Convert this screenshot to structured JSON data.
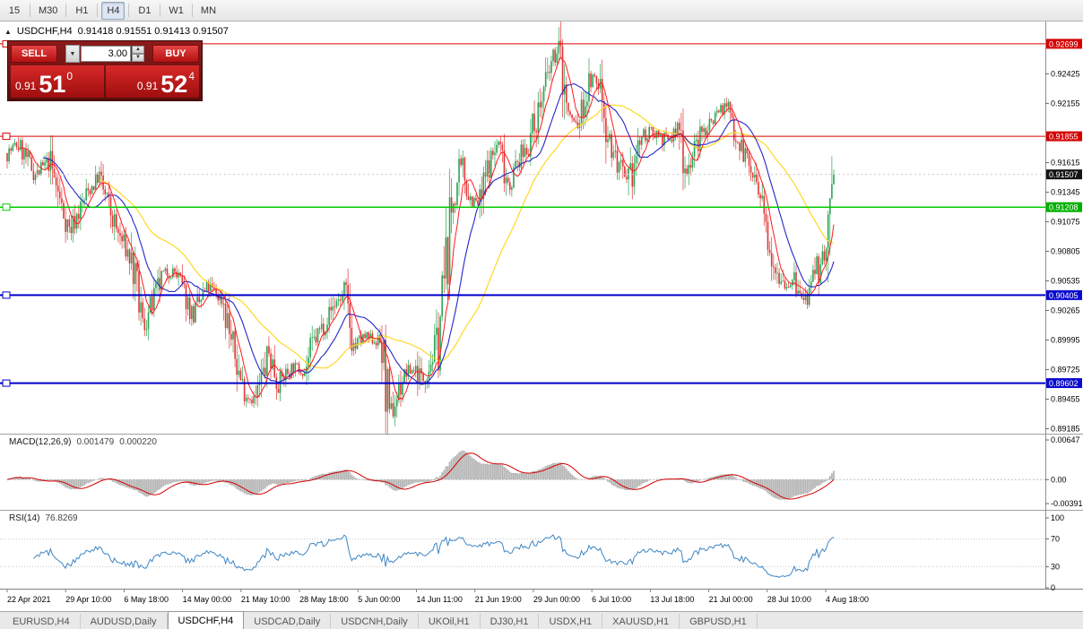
{
  "toolbar": {
    "timeframes": [
      "15",
      "M30",
      "H1",
      "H4",
      "D1",
      "W1",
      "MN"
    ],
    "active": "H4"
  },
  "chart_header": {
    "collapse_icon": "▲",
    "title": "USDCHF,H4",
    "ohlc": "0.91418 0.91551 0.91413 0.91507"
  },
  "trade_panel": {
    "sell_label": "SELL",
    "buy_label": "BUY",
    "volume": "3.00",
    "dropdown_icon": "▼",
    "spin_up_icon": "▲",
    "spin_down_icon": "▼",
    "sell_price_prefix": "0.91",
    "sell_price_big": "51",
    "sell_price_sup": "0",
    "buy_price_prefix": "0.91",
    "buy_price_big": "52",
    "buy_price_sup": "4"
  },
  "indicators": {
    "macd_label": "MACD(12,26,9)",
    "macd_value_main": "0.001479",
    "macd_value_signal": "0.000220",
    "rsi_label": "RSI(14)",
    "rsi_value": "76.8269"
  },
  "tabs": [
    {
      "label": "EURUSD,H4",
      "active": false
    },
    {
      "label": "AUDUSD,Daily",
      "active": false
    },
    {
      "label": "USDCHF,H4",
      "active": true
    },
    {
      "label": "USDCAD,Daily",
      "active": false
    },
    {
      "label": "USDCNH,Daily",
      "active": false
    },
    {
      "label": "UKOil,H1",
      "active": false
    },
    {
      "label": "DJ30,H1",
      "active": false
    },
    {
      "label": "USDX,H1",
      "active": false
    },
    {
      "label": "XAUUSD,H1",
      "active": false
    },
    {
      "label": "GBPUSD,H1",
      "active": false
    }
  ],
  "chart_data": {
    "type": "candlestick",
    "symbol": "USDCHF",
    "timeframe": "H4",
    "current_ohlc": {
      "open": 0.91418,
      "high": 0.91551,
      "low": 0.91413,
      "close": 0.91507
    },
    "current_price": 0.91507,
    "price_axis": {
      "top": 0.92829,
      "bottom": 0.89165,
      "ticks": [
        0.92425,
        0.92155,
        0.91615,
        0.91345,
        0.91075,
        0.90805,
        0.90535,
        0.90265,
        0.89995,
        0.89725,
        0.89455,
        0.89185
      ]
    },
    "special_prices": [
      {
        "label": "0.92699",
        "price": 0.92699,
        "bg": "#d40000"
      },
      {
        "label": "0.91855",
        "price": 0.91855,
        "bg": "#d40000"
      },
      {
        "label": "0.91507",
        "price": 0.91507,
        "bg": "#151515"
      },
      {
        "label": "0.91208",
        "price": 0.91208,
        "bg": "#00b000"
      },
      {
        "label": "0.90405",
        "price": 0.90405,
        "bg": "#0a0ace"
      },
      {
        "label": "0.89602",
        "price": 0.89602,
        "bg": "#0a0ace"
      }
    ],
    "horizontal_lines": [
      {
        "price": 0.92699,
        "color": "#dd0000",
        "w": 1
      },
      {
        "price": 0.91855,
        "color": "#dd0000",
        "w": 1
      },
      {
        "price": 0.91208,
        "color": "#00cc00",
        "w": 1.5
      },
      {
        "price": 0.90405,
        "color": "#0000cc",
        "w": 2
      },
      {
        "price": 0.89602,
        "color": "#0000cc",
        "w": 2
      }
    ],
    "time_labels": [
      "22 Apr 2021",
      "29 Apr 10:00",
      "6 May 18:00",
      "14 May 00:00",
      "21 May 10:00",
      "28 May 18:00",
      "5 Jun 00:00",
      "14 Jun 11:00",
      "21 Jun 19:00",
      "29 Jun 00:00",
      "6 Jul 10:00",
      "13 Jul 18:00",
      "21 Jul 00:00",
      "28 Jul 10:00",
      "4 Aug 18:00"
    ],
    "candle_count": 440,
    "price_path": [
      [
        0.0,
        0.917
      ],
      [
        0.013,
        0.9178
      ],
      [
        0.035,
        0.915
      ],
      [
        0.051,
        0.9163
      ],
      [
        0.067,
        0.9118
      ],
      [
        0.076,
        0.91
      ],
      [
        0.1,
        0.9138
      ],
      [
        0.111,
        0.9148
      ],
      [
        0.132,
        0.91
      ],
      [
        0.149,
        0.9075
      ],
      [
        0.165,
        0.9012
      ],
      [
        0.19,
        0.906
      ],
      [
        0.203,
        0.9062
      ],
      [
        0.225,
        0.9022
      ],
      [
        0.243,
        0.9048
      ],
      [
        0.262,
        0.9035
      ],
      [
        0.273,
        0.8992
      ],
      [
        0.287,
        0.895
      ],
      [
        0.301,
        0.8945
      ],
      [
        0.317,
        0.8988
      ],
      [
        0.328,
        0.896
      ],
      [
        0.344,
        0.8975
      ],
      [
        0.36,
        0.8972
      ],
      [
        0.371,
        0.8998
      ],
      [
        0.398,
        0.9035
      ],
      [
        0.408,
        0.904
      ],
      [
        0.42,
        0.8992
      ],
      [
        0.431,
        0.9002
      ],
      [
        0.452,
        0.8998
      ],
      [
        0.463,
        0.8928
      ],
      [
        0.48,
        0.8968
      ],
      [
        0.496,
        0.8975
      ],
      [
        0.501,
        0.8962
      ],
      [
        0.512,
        0.898
      ],
      [
        0.521,
        0.9
      ],
      [
        0.539,
        0.9125
      ],
      [
        0.55,
        0.9158
      ],
      [
        0.561,
        0.9128
      ],
      [
        0.572,
        0.9122
      ],
      [
        0.582,
        0.9158
      ],
      [
        0.594,
        0.918
      ],
      [
        0.607,
        0.9142
      ],
      [
        0.62,
        0.9165
      ],
      [
        0.631,
        0.918
      ],
      [
        0.647,
        0.922
      ],
      [
        0.661,
        0.9258
      ],
      [
        0.668,
        0.9262
      ],
      [
        0.679,
        0.9205
      ],
      [
        0.69,
        0.9195
      ],
      [
        0.707,
        0.9238
      ],
      [
        0.718,
        0.923
      ],
      [
        0.729,
        0.918
      ],
      [
        0.75,
        0.9135
      ],
      [
        0.767,
        0.9185
      ],
      [
        0.784,
        0.919
      ],
      [
        0.8,
        0.918
      ],
      [
        0.813,
        0.9195
      ],
      [
        0.822,
        0.9155
      ],
      [
        0.838,
        0.9185
      ],
      [
        0.86,
        0.921
      ],
      [
        0.871,
        0.9212
      ],
      [
        0.884,
        0.9185
      ],
      [
        0.902,
        0.915
      ],
      [
        0.919,
        0.91
      ],
      [
        0.93,
        0.9068
      ],
      [
        0.941,
        0.905
      ],
      [
        0.952,
        0.9052
      ],
      [
        0.963,
        0.9034
      ],
      [
        0.974,
        0.9045
      ],
      [
        0.985,
        0.9075
      ],
      [
        0.993,
        0.9082
      ],
      [
        1.0,
        0.915
      ]
    ],
    "colors": {
      "up": "#2aa352",
      "down": "#e03636",
      "ma_fast": "#ff1a1a",
      "ma_mid": "#2626c8",
      "ma_slow": "#ffd824",
      "macd_hist": "#b4b4b4",
      "macd_signal": "#d40000",
      "rsi": "#3f86c4"
    },
    "ma_periods": {
      "fast": 8,
      "mid": 20,
      "slow": 50
    },
    "macd": {
      "fast": 12,
      "slow": 26,
      "signal": 9,
      "scale": {
        "max": 0.00647,
        "min": -0.00391
      },
      "labels": [
        {
          "text": "0.00647",
          "v": 0.00647
        },
        {
          "text": "0.00",
          "v": 0
        },
        {
          "text": "-0.00391",
          "v": -0.00391
        }
      ]
    },
    "rsi": {
      "period": 14,
      "labels": [
        {
          "text": "100",
          "v": 100
        },
        {
          "text": "70",
          "v": 70
        },
        {
          "text": "30",
          "v": 30
        },
        {
          "text": "0",
          "v": 0
        }
      ],
      "levels": [
        70,
        30
      ]
    }
  }
}
